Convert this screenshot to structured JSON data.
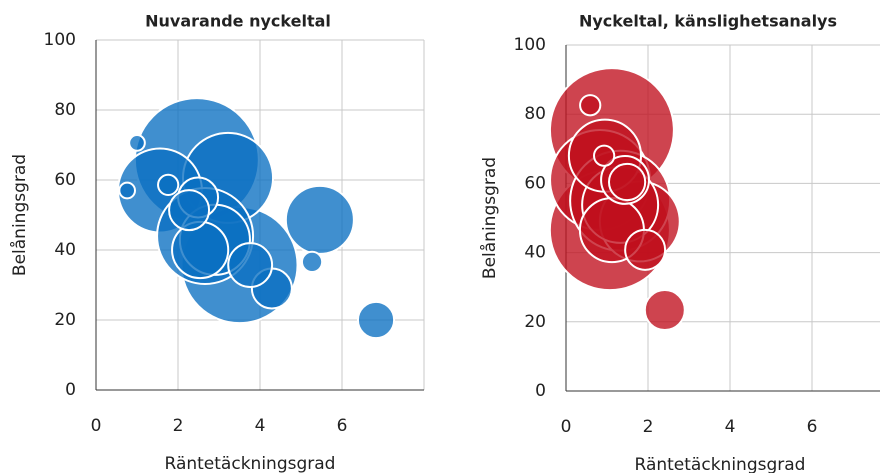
{
  "chart_data": [
    {
      "type": "bubble",
      "title": "Nuvarande nyckeltal",
      "xlabel": "Räntetäckningsgrad",
      "ylabel": "Belåningsgrad",
      "xlim": [
        0,
        8
      ],
      "ylim": [
        0,
        100
      ],
      "xticks": [
        0,
        2,
        4,
        6
      ],
      "yticks": [
        0,
        20,
        40,
        60,
        80,
        100
      ],
      "grid": true,
      "series": [
        {
          "color": "#0a6fc2",
          "x": [
            2.46,
            3.5,
            3.22,
            1.56,
            2.66,
            5.46,
            2.9,
            2.54,
            6.83,
            4.29,
            3.76,
            2.49,
            2.27,
            5.27,
            1.76,
            1.0,
            0.76
          ],
          "y": [
            65.7,
            35.7,
            60.6,
            57,
            44,
            48.6,
            42.9,
            40,
            20,
            29,
            35.7,
            55,
            51.4,
            36.6,
            58.6,
            70.6,
            57
          ],
          "size": [
            375,
            329,
            198,
            172,
            225,
            113,
            120,
            77,
            32,
            39,
            47,
            39,
            39,
            10,
            10,
            6,
            6
          ]
        }
      ]
    },
    {
      "type": "bubble",
      "title": "Nyckeltal, känslighetsanalys",
      "xlabel": "Räntetäckningsgrad",
      "ylabel": "Belåningsgrad",
      "xlim": [
        0,
        8
      ],
      "ylim": [
        0,
        100
      ],
      "xticks": [
        0,
        2,
        4,
        6
      ],
      "yticks": [
        0,
        20,
        40,
        60,
        80,
        100
      ],
      "grid": true,
      "series": [
        {
          "color": "#c0101e",
          "x": [
            1.12,
            1.07,
            0.83,
            1.32,
            1.8,
            1.32,
            0.95,
            1.12,
            2.41,
            1.93,
            1.44,
            1.49,
            0.59,
            0.93
          ],
          "y": [
            75.4,
            46.5,
            61,
            55,
            49,
            53.8,
            68,
            46.5,
            23.4,
            40.8,
            61,
            60.4,
            82.6,
            68
          ],
          "size": [
            375,
            352,
            244,
            244,
            156,
            141,
            127,
            100,
            39,
            39,
            56,
            32,
            10,
            10
          ]
        }
      ]
    }
  ]
}
